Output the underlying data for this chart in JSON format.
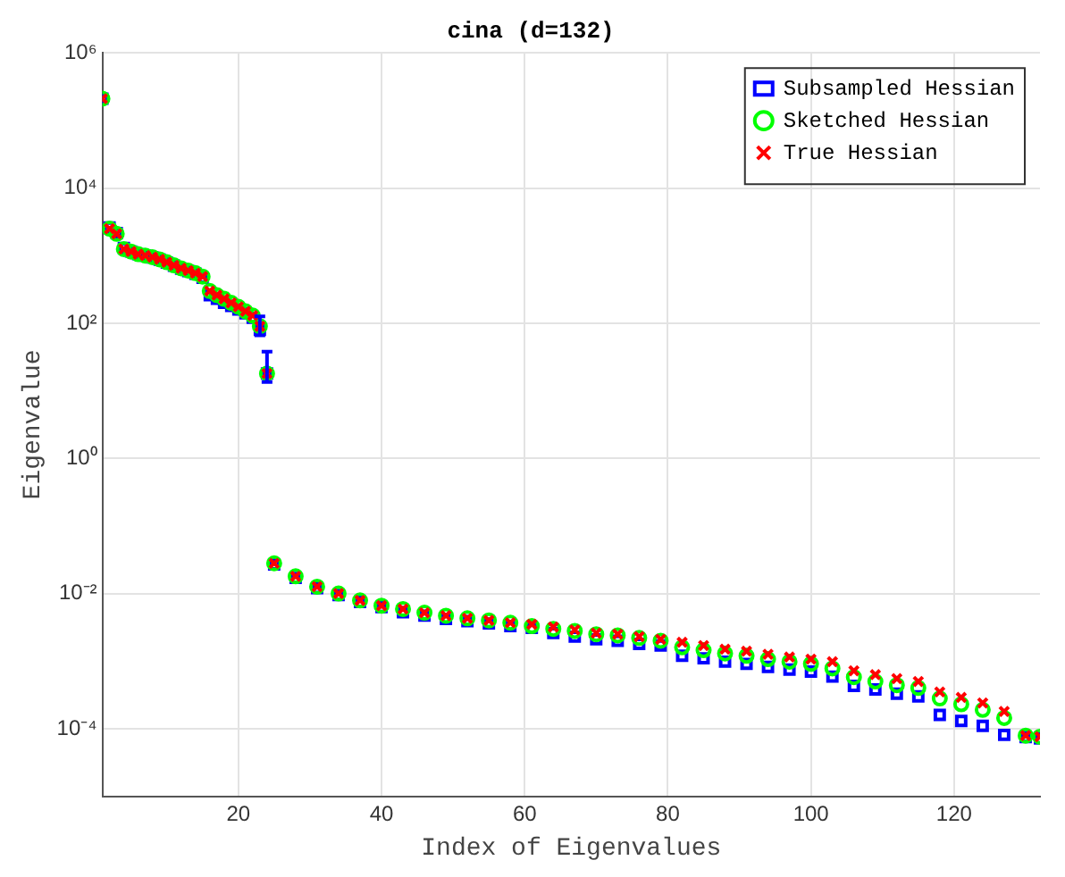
{
  "chart_data": {
    "type": "scatter",
    "title": "cina (d=132)",
    "xlabel": "Index of Eigenvalues",
    "ylabel": "Eigenvalue",
    "x": [
      1,
      2,
      3,
      4,
      5,
      6,
      7,
      8,
      9,
      10,
      11,
      12,
      13,
      14,
      15,
      16,
      17,
      18,
      19,
      20,
      21,
      22,
      23,
      24,
      25,
      28,
      31,
      34,
      37,
      40,
      43,
      46,
      49,
      52,
      55,
      58,
      61,
      64,
      67,
      70,
      73,
      76,
      79,
      82,
      85,
      88,
      91,
      94,
      97,
      100,
      103,
      106,
      109,
      112,
      115,
      118,
      121,
      124,
      127,
      130,
      132
    ],
    "xlim": [
      1,
      132
    ],
    "xticks": [
      20,
      40,
      60,
      80,
      100,
      120
    ],
    "ylim": [
      1e-05,
      1000000
    ],
    "yticks": [
      {
        "value": 0.0001,
        "label": "10⁻⁴"
      },
      {
        "value": 0.01,
        "label": "10⁻²"
      },
      {
        "value": 1,
        "label": "10⁰"
      },
      {
        "value": 100,
        "label": "10²"
      },
      {
        "value": 10000,
        "label": "10⁴"
      },
      {
        "value": 1000000,
        "label": "10⁶"
      }
    ],
    "log": "y",
    "grid": true,
    "legend": "top right",
    "series": [
      {
        "name": "Subsampled Hessian",
        "color": "#0000ff",
        "marker": "square",
        "values": [
          210000,
          2600,
          2150,
          1300,
          1150,
          1050,
          1000,
          940,
          870,
          790,
          710,
          640,
          590,
          540,
          470,
          260,
          230,
          200,
          180,
          160,
          140,
          120,
          80,
          18,
          0.027,
          0.017,
          0.012,
          0.0095,
          0.0075,
          0.0063,
          0.0053,
          0.0047,
          0.0042,
          0.0039,
          0.0036,
          0.0033,
          0.0031,
          0.0026,
          0.0023,
          0.0021,
          0.002,
          0.0018,
          0.0017,
          0.0012,
          0.0011,
          0.00098,
          0.00091,
          0.00082,
          0.00075,
          0.0007,
          0.00059,
          0.00043,
          0.00038,
          0.00033,
          0.0003,
          0.00016,
          0.00013,
          0.00011,
          8.1e-05,
          7.5e-05,
          7.2e-05
        ],
        "errors": [
          null,
          null,
          null,
          null,
          null,
          null,
          null,
          null,
          null,
          null,
          null,
          null,
          null,
          null,
          null,
          null,
          null,
          null,
          null,
          null,
          null,
          null,
          [
            66,
            126
          ],
          [
            13.5,
            38
          ],
          null,
          null,
          null,
          null,
          null,
          null,
          null,
          null,
          null,
          null,
          null,
          null,
          null,
          null,
          null,
          null,
          null,
          null,
          null,
          null,
          null,
          null,
          null,
          null,
          null,
          null,
          null,
          null,
          null,
          null,
          null,
          null,
          null,
          null,
          null,
          null,
          null
        ]
      },
      {
        "name": "Sketched Hessian",
        "color": "#00ff00",
        "marker": "circle",
        "values": [
          210000,
          2500,
          2100,
          1250,
          1150,
          1050,
          1000,
          950,
          880,
          800,
          720,
          650,
          600,
          550,
          490,
          300,
          260,
          230,
          200,
          175,
          150,
          130,
          90,
          18,
          0.028,
          0.018,
          0.0126,
          0.01,
          0.0079,
          0.0066,
          0.0059,
          0.0052,
          0.0047,
          0.0043,
          0.004,
          0.0037,
          0.0033,
          0.003,
          0.0028,
          0.0025,
          0.0024,
          0.0022,
          0.002,
          0.0016,
          0.00145,
          0.0013,
          0.0012,
          0.00107,
          0.00098,
          0.00091,
          0.00078,
          0.00058,
          0.0005,
          0.00044,
          0.0004,
          0.00028,
          0.00023,
          0.00019,
          0.000144,
          7.9e-05,
          7.6e-05
        ]
      },
      {
        "name": "True Hessian",
        "color": "#ff0000",
        "marker": "cross",
        "values": [
          210000,
          2500,
          2100,
          1250,
          1150,
          1050,
          1000,
          950,
          880,
          800,
          720,
          650,
          600,
          550,
          490,
          300,
          260,
          230,
          200,
          175,
          150,
          130,
          90,
          18,
          0.028,
          0.018,
          0.0126,
          0.01,
          0.0079,
          0.0066,
          0.0059,
          0.0052,
          0.0047,
          0.0043,
          0.004,
          0.0037,
          0.0035,
          0.0032,
          0.0029,
          0.0026,
          0.0025,
          0.0023,
          0.0021,
          0.0019,
          0.0017,
          0.0015,
          0.0014,
          0.00126,
          0.00115,
          0.00107,
          0.00098,
          0.00072,
          0.00063,
          0.00055,
          0.0005,
          0.00035,
          0.00029,
          0.00024,
          0.00018,
          7.9e-05,
          7.6e-05
        ]
      }
    ]
  }
}
